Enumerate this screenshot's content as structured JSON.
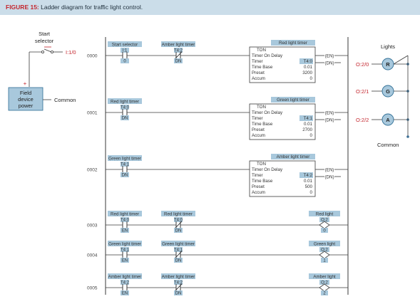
{
  "figure": {
    "label": "FIGURE 15:",
    "title": "Ladder diagram for traffic light control."
  },
  "field": {
    "start_selector": [
      "Start",
      "selector"
    ],
    "input_address": "I:1/0",
    "plus": "+",
    "power_box": [
      "Field",
      "device",
      "power"
    ],
    "common_left": "Common",
    "lights_title": "Lights",
    "common_right": "Common"
  },
  "rungs": [
    {
      "number": "0000",
      "contacts": [
        {
          "label": "Start selector",
          "address": "I:1",
          "bit": "0",
          "type": "NO"
        },
        {
          "label": "Amber light timer",
          "address": "T4:2",
          "bit": "DN",
          "type": "NC"
        }
      ],
      "timer": {
        "title": "Red light timer",
        "head": "TON",
        "name": "Timer On Delay",
        "rows": [
          {
            "k": "Timer",
            "v": "T4:0"
          },
          {
            "k": "Time Base",
            "v": "0.01"
          },
          {
            "k": "Preset",
            "v": "3200"
          },
          {
            "k": "Accum",
            "v": "0"
          }
        ],
        "en": "EN",
        "dn": "DN"
      }
    },
    {
      "number": "0001",
      "contacts": [
        {
          "label": "Red light timer",
          "address": "T4:0",
          "bit": "DN",
          "type": "NO"
        }
      ],
      "timer": {
        "title": "Green light timer",
        "head": "TON",
        "name": "Timer On Delay",
        "rows": [
          {
            "k": "Timer",
            "v": "T4:1"
          },
          {
            "k": "Time Base",
            "v": "0.01"
          },
          {
            "k": "Preset",
            "v": "2700"
          },
          {
            "k": "Accum",
            "v": "0"
          }
        ],
        "en": "EN",
        "dn": "DN"
      }
    },
    {
      "number": "0002",
      "contacts": [
        {
          "label": "Green light timer",
          "address": "T4:1",
          "bit": "DN",
          "type": "NO"
        }
      ],
      "timer": {
        "title": "Amber light timer",
        "head": "TON",
        "name": "Timer On Delay",
        "rows": [
          {
            "k": "Timer",
            "v": "T4:2"
          },
          {
            "k": "Time Base",
            "v": "0.01"
          },
          {
            "k": "Preset",
            "v": "500"
          },
          {
            "k": "Accum",
            "v": "0"
          }
        ],
        "en": "EN",
        "dn": "DN"
      }
    },
    {
      "number": "0003",
      "contacts": [
        {
          "label": "Red light timer",
          "address": "T4:0",
          "bit": "EN",
          "type": "NO"
        },
        {
          "label": "Red light timer",
          "address": "T4:0",
          "bit": "DN",
          "type": "NC"
        }
      ],
      "output": {
        "label": "Red light",
        "address": "O:2",
        "bit": "0"
      }
    },
    {
      "number": "0004",
      "contacts": [
        {
          "label": "Green light timer",
          "address": "T4:1",
          "bit": "EN",
          "type": "NO"
        },
        {
          "label": "Green light timer",
          "address": "T4:1",
          "bit": "DN",
          "type": "NC"
        }
      ],
      "output": {
        "label": "Green light",
        "address": "O:2",
        "bit": "1"
      }
    },
    {
      "number": "0005",
      "contacts": [
        {
          "label": "Amber light timer",
          "address": "T4:2",
          "bit": "EN",
          "type": "NO"
        },
        {
          "label": "Amber light timer",
          "address": "T4:2",
          "bit": "DN",
          "type": "NC"
        }
      ],
      "output": {
        "label": "Amber light",
        "address": "O:2",
        "bit": "2"
      }
    }
  ],
  "lights": [
    {
      "address": "O:2/0",
      "letter": "R",
      "name": "red"
    },
    {
      "address": "O:2/1",
      "letter": "G",
      "name": "green"
    },
    {
      "address": "O:2/2",
      "letter": "A",
      "name": "amber"
    }
  ],
  "colors": {
    "label_bg": "#a8c8dc",
    "wire": "#3a3a3a",
    "red_text": "#c4262e",
    "caption_bg": "#cbdde9"
  }
}
